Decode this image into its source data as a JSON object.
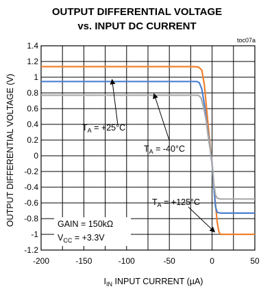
{
  "chart_data": {
    "type": "line",
    "title_line1": "OUTPUT DIFFERENTIAL VOLTAGE",
    "title_line2": "vs. INPUT DC CURRENT",
    "figure_id": "toc07a",
    "xlabel_sym": "I",
    "xlabel_sub": "IN",
    "xlabel_rest": " INPUT CURRENT (µA)",
    "ylabel": "OUTPUT DIFFERENTIAL VOLTAGE (V)",
    "xlim": [
      -200,
      50
    ],
    "ylim": [
      -1.2,
      1.4
    ],
    "xticks": [
      -200,
      -150,
      -100,
      -50,
      0,
      50
    ],
    "xtick_labels": [
      "-200",
      "-150",
      "-100",
      "-50",
      "0",
      "50"
    ],
    "yticks": [
      1.4,
      1.2,
      1,
      0.8,
      0.6,
      0.4,
      0.2,
      0,
      -0.2,
      -0.4,
      -0.6,
      -0.8,
      -1,
      -1.2
    ],
    "ytick_labels": [
      "1.4",
      "1.2",
      "1",
      "0.8",
      "0.6",
      "0.4",
      "0.2",
      "0",
      "-0.2",
      "-0.4",
      "-0.6",
      "-0.8",
      "-1",
      "-1.2"
    ],
    "grid": true,
    "series": [
      {
        "name": "T_A = +125°C",
        "color": "#f07f2c",
        "x": [
          -200,
          -22,
          -16,
          -12,
          -9,
          -6,
          -3,
          0,
          3,
          6,
          8,
          10,
          50
        ],
        "y": [
          1.135,
          1.135,
          1.13,
          1.09,
          0.9,
          0.55,
          0.2,
          -0.1,
          -0.5,
          -0.85,
          -0.97,
          -1.0,
          -1.0
        ]
      },
      {
        "name": "T_A = +25°C",
        "color": "#4a7fd0",
        "x": [
          -200,
          -18,
          -15,
          -12,
          -9,
          -6,
          -3,
          0,
          2,
          4,
          6,
          10,
          50
        ],
        "y": [
          0.945,
          0.945,
          0.93,
          0.85,
          0.65,
          0.4,
          0.15,
          -0.1,
          -0.4,
          -0.65,
          -0.72,
          -0.73,
          -0.73
        ]
      },
      {
        "name": "T_A = -40°C",
        "color": "#aaaaaa",
        "x": [
          -200,
          -16,
          -13,
          -10,
          -7,
          -4,
          -1,
          0,
          2,
          4,
          6,
          10,
          50
        ],
        "y": [
          0.77,
          0.77,
          0.74,
          0.62,
          0.45,
          0.2,
          0.0,
          -0.08,
          -0.35,
          -0.5,
          -0.54,
          -0.55,
          -0.55
        ]
      }
    ],
    "annotations": [
      {
        "base": "T",
        "sub": "A",
        "rest": " = +25°C",
        "arrow_to": [
          -117,
          0.97
        ]
      },
      {
        "base": "T",
        "sub": "A",
        "rest": " = -40°C",
        "arrow_to": [
          -68,
          0.79
        ]
      },
      {
        "base": "T",
        "sub": "A",
        "rest": " = +125°C",
        "arrow_to": [
          3,
          -0.97
        ]
      }
    ],
    "conditions": {
      "gain": "GAIN = 150kΩ",
      "vcc_base": "V",
      "vcc_sub": "CC",
      "vcc_rest": " = +3.3V"
    }
  }
}
